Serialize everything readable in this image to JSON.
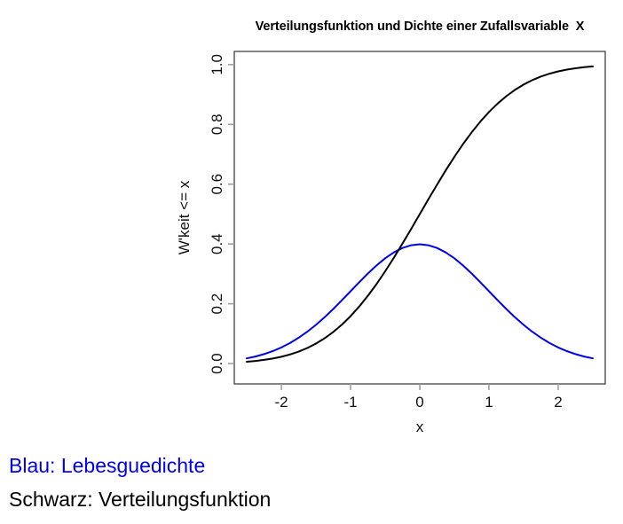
{
  "chart_data": {
    "type": "line",
    "title": "Verteilungsfunktion und Dichte einer Zufallsvariable  X",
    "xlabel": "x",
    "ylabel": "W'keit <= x",
    "grid": false,
    "legend_position": "none",
    "xlim": [
      -2.68,
      2.68
    ],
    "ylim": [
      -0.068,
      1.044
    ],
    "x_tick_values": [
      -2,
      -1,
      0,
      1,
      2
    ],
    "x_tick_labels": [
      "-2",
      "-1",
      "0",
      "1",
      "2"
    ],
    "y_tick_values": [
      0.0,
      0.2,
      0.4,
      0.6,
      0.8,
      1.0
    ],
    "y_tick_labels": [
      "0.0",
      "0.2",
      "0.4",
      "0.6",
      "0.8",
      "1.0"
    ],
    "x": [
      -2.5,
      -2.375,
      -2.25,
      -2.125,
      -2.0,
      -1.875,
      -1.75,
      -1.625,
      -1.5,
      -1.375,
      -1.25,
      -1.125,
      -1.0,
      -0.875,
      -0.75,
      -0.625,
      -0.5,
      -0.375,
      -0.25,
      -0.125,
      0.0,
      0.125,
      0.25,
      0.375,
      0.5,
      0.625,
      0.75,
      0.875,
      1.0,
      1.125,
      1.25,
      1.375,
      1.5,
      1.625,
      1.75,
      1.875,
      2.0,
      2.125,
      2.25,
      2.375,
      2.5
    ],
    "series": [
      {
        "name": "Lebesguedichte",
        "color": "#0000ee",
        "values": [
          0.01753,
          0.02377,
          0.03174,
          0.04172,
          0.05399,
          0.06878,
          0.08638,
          0.10653,
          0.12952,
          0.15501,
          0.18265,
          0.21189,
          0.24197,
          0.27205,
          0.30114,
          0.32816,
          0.35207,
          0.37186,
          0.38667,
          0.39584,
          0.39894,
          0.39584,
          0.38667,
          0.37186,
          0.35207,
          0.32816,
          0.30114,
          0.27205,
          0.24197,
          0.21189,
          0.18265,
          0.15501,
          0.12952,
          0.10653,
          0.08638,
          0.06878,
          0.05399,
          0.04172,
          0.03174,
          0.02377,
          0.01753
        ]
      },
      {
        "name": "Verteilungsfunktion",
        "color": "#000000",
        "values": [
          0.00621,
          0.00878,
          0.01222,
          0.01679,
          0.02275,
          0.0304,
          0.04006,
          0.05208,
          0.06681,
          0.08457,
          0.10565,
          0.1303,
          0.15866,
          0.19079,
          0.22663,
          0.26599,
          0.30854,
          0.35383,
          0.40129,
          0.45026,
          0.5,
          0.54974,
          0.59871,
          0.64617,
          0.69146,
          0.73401,
          0.77337,
          0.80921,
          0.84134,
          0.8697,
          0.89435,
          0.91543,
          0.93319,
          0.94792,
          0.95994,
          0.9696,
          0.97725,
          0.98321,
          0.98778,
          0.99122,
          0.99379
        ]
      }
    ],
    "colors": {
      "box": "#333333",
      "ticks": "#999999",
      "tick_label": "#111111"
    }
  },
  "caption": {
    "line1": "Blau: Lebesguedichte",
    "line2": "Schwarz: Verteilungsfunktion",
    "line1_color": "#0000ee",
    "line2_color": "#000000"
  }
}
